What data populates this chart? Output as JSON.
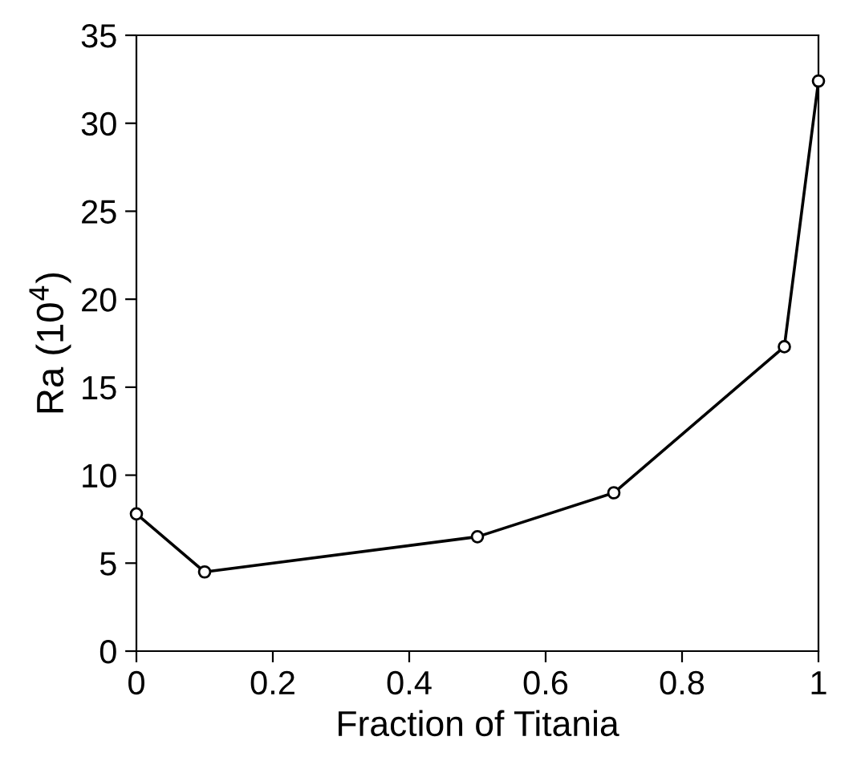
{
  "chart_data": {
    "type": "line",
    "xlabel": "Fraction of Titania",
    "ylabel": "Ra (10$^{4}$)",
    "x": [
      0,
      0.1,
      0.5,
      0.7,
      0.95,
      1.0
    ],
    "series": [
      {
        "color": "#000000",
        "values": [
          7.8,
          4.5,
          6.5,
          9.0,
          17.3,
          32.4
        ]
      }
    ],
    "xlim": [
      0,
      1
    ],
    "ylim": [
      0,
      35
    ],
    "xticks": [
      0,
      0.2,
      0.4,
      0.6,
      0.8,
      1
    ],
    "yticks": [
      0,
      5,
      10,
      15,
      20,
      25,
      30,
      35
    ],
    "grid": false,
    "legend": false,
    "marker": "circle",
    "line_style": "solid"
  }
}
